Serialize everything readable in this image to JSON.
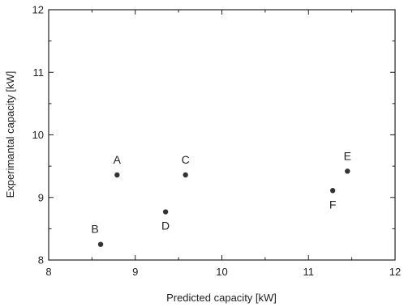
{
  "chart_data": {
    "type": "scatter",
    "title": "",
    "xlabel": "Predicted capacity [kW]",
    "ylabel": "Experimantal capacity [kW]",
    "xlim": [
      8,
      12
    ],
    "ylim": [
      8,
      12
    ],
    "x_ticks": [
      "8",
      "9",
      "10",
      "11",
      "12"
    ],
    "y_ticks": [
      "8",
      "9",
      "10",
      "11",
      "12"
    ],
    "grid": false,
    "legend": "none",
    "marker_color": "#333333",
    "points": [
      {
        "label": "A",
        "x": 8.79,
        "y": 9.36,
        "label_pos": "top"
      },
      {
        "label": "B",
        "x": 8.6,
        "y": 8.25,
        "label_pos": "top-left"
      },
      {
        "label": "C",
        "x": 9.58,
        "y": 9.36,
        "label_pos": "top"
      },
      {
        "label": "D",
        "x": 9.35,
        "y": 8.77,
        "label_pos": "bottom"
      },
      {
        "label": "E",
        "x": 11.45,
        "y": 9.42,
        "label_pos": "top"
      },
      {
        "label": "F",
        "x": 11.28,
        "y": 9.11,
        "label_pos": "bottom"
      }
    ]
  }
}
